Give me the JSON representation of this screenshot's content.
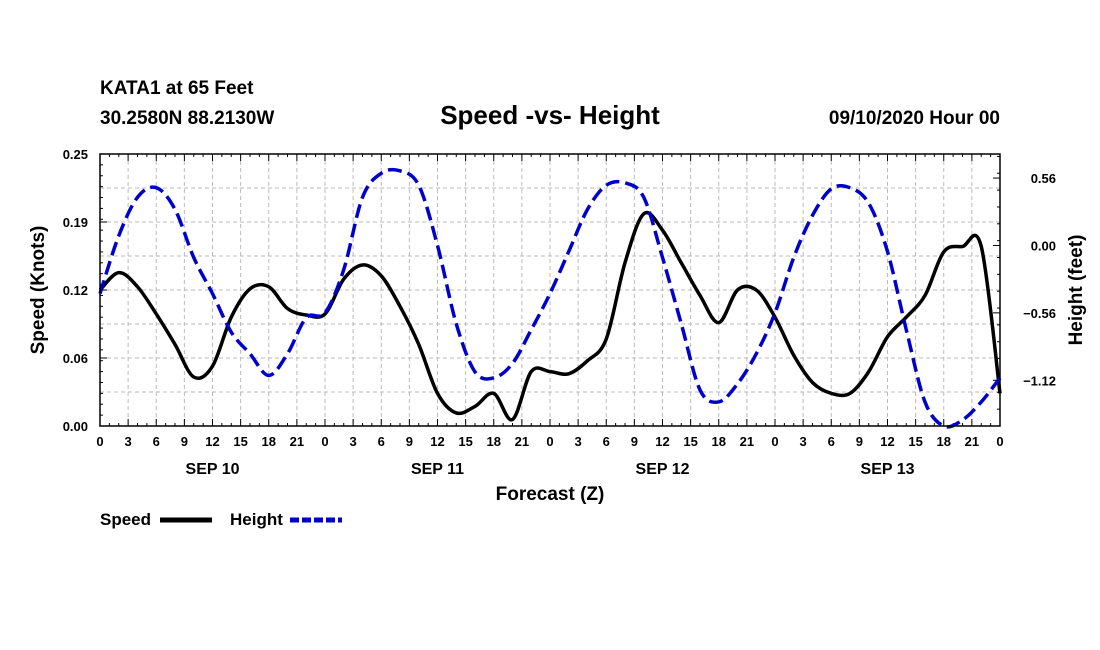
{
  "header": {
    "station": "KATA1 at 65 Feet",
    "coords": "30.2580N 88.2130W",
    "title": "Speed -vs- Height",
    "date": "09/10/2020 Hour 00"
  },
  "legend": {
    "speed_label": "Speed",
    "height_label": "Height"
  },
  "colors": {
    "speed": "#000000",
    "height": "#0000cc",
    "grid": "#bbbbbb"
  },
  "chart_data": {
    "type": "line",
    "title": "Speed -vs- Height",
    "xlabel": "Forecast (Z)",
    "ylabel": "Speed (Knots)",
    "y2label": "Height (feet)",
    "xlim": [
      0,
      96
    ],
    "ylim": [
      0,
      0.25
    ],
    "y2lim": [
      -1.5,
      0.76
    ],
    "x_tick_labels": [
      "0",
      "3",
      "6",
      "9",
      "12",
      "15",
      "18",
      "21",
      "0",
      "3",
      "6",
      "9",
      "12",
      "15",
      "18",
      "21",
      "0",
      "3",
      "6",
      "9",
      "12",
      "15",
      "18",
      "21",
      "0",
      "3",
      "6",
      "9",
      "12",
      "15",
      "18",
      "21",
      "0"
    ],
    "day_labels": [
      {
        "label": "SEP 10",
        "hour": 12
      },
      {
        "label": "SEP 11",
        "hour": 36
      },
      {
        "label": "SEP 12",
        "hour": 60
      },
      {
        "label": "SEP 13",
        "hour": 84
      }
    ],
    "y_ticks": [
      "0.00",
      "0.06",
      "0.12",
      "0.19",
      "0.25"
    ],
    "y_tick_values": [
      0,
      0.0625,
      0.125,
      0.1875,
      0.25
    ],
    "y2_ticks": [
      "0.56",
      "0.00",
      "−0.56",
      "−1.12"
    ],
    "y2_tick_values": [
      0.56,
      0,
      -0.56,
      -1.12
    ],
    "series": [
      {
        "name": "Speed",
        "axis": "left",
        "style": "solid",
        "x": [
          0,
          2,
          4,
          6,
          8,
          10,
          12,
          14,
          16,
          18,
          20,
          22,
          24,
          26,
          28,
          30,
          32,
          34,
          36,
          38,
          40,
          42,
          44,
          46,
          48,
          50,
          52,
          54,
          56,
          58,
          60,
          62,
          64,
          66,
          68,
          70,
          72,
          74,
          76,
          78,
          80,
          82,
          84,
          86,
          88,
          90,
          92,
          94,
          96
        ],
        "values": [
          0.125,
          0.141,
          0.128,
          0.103,
          0.075,
          0.045,
          0.055,
          0.1,
          0.126,
          0.128,
          0.108,
          0.102,
          0.103,
          0.135,
          0.148,
          0.138,
          0.11,
          0.075,
          0.03,
          0.012,
          0.018,
          0.03,
          0.006,
          0.05,
          0.05,
          0.048,
          0.06,
          0.08,
          0.15,
          0.195,
          0.18,
          0.15,
          0.12,
          0.095,
          0.125,
          0.125,
          0.1,
          0.065,
          0.04,
          0.03,
          0.03,
          0.05,
          0.082,
          0.1,
          0.12,
          0.16,
          0.165,
          0.165,
          0.03
        ]
      },
      {
        "name": "Height",
        "axis": "right",
        "style": "dashed",
        "x": [
          0,
          2,
          4,
          6,
          8,
          10,
          12,
          14,
          16,
          18,
          20,
          22,
          24,
          26,
          28,
          30,
          32,
          34,
          36,
          38,
          40,
          42,
          44,
          46,
          48,
          50,
          52,
          54,
          56,
          58,
          60,
          62,
          64,
          66,
          68,
          70,
          72,
          74,
          76,
          78,
          80,
          82,
          84,
          86,
          88,
          90,
          92,
          94,
          96
        ],
        "values": [
          -0.4,
          0.08,
          0.4,
          0.48,
          0.3,
          -0.1,
          -0.4,
          -0.72,
          -0.9,
          -1.08,
          -0.9,
          -0.6,
          -0.56,
          -0.2,
          0.4,
          0.6,
          0.62,
          0.5,
          0.0,
          -0.65,
          -1.05,
          -1.1,
          -0.98,
          -0.7,
          -0.4,
          -0.05,
          0.3,
          0.5,
          0.52,
          0.4,
          -0.1,
          -0.65,
          -1.2,
          -1.3,
          -1.15,
          -0.9,
          -0.56,
          -0.1,
          0.25,
          0.47,
          0.48,
          0.35,
          -0.05,
          -0.7,
          -1.3,
          -1.5,
          -1.45,
          -1.3,
          -1.1
        ]
      }
    ]
  }
}
